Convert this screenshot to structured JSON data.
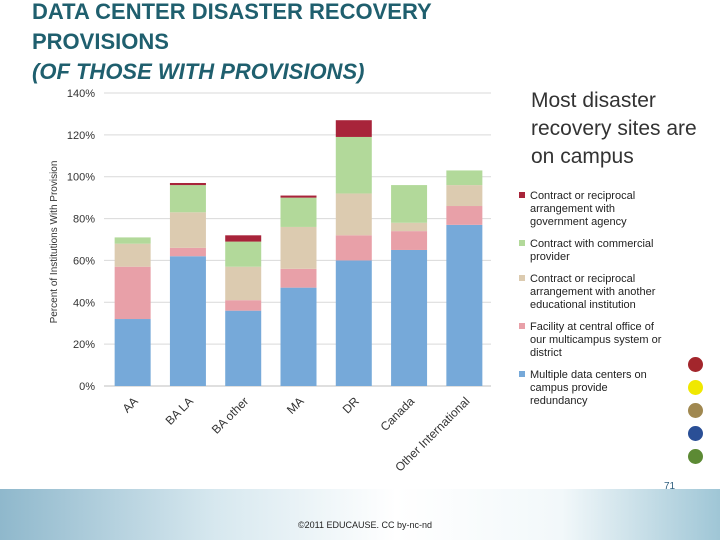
{
  "slide": {
    "title_lines": [
      "DATA CENTER DISASTER RECOVERY",
      "PROVISIONS",
      "(OF THOSE WITH PROVISIONS)"
    ],
    "side_note": "Most disaster recovery sites are on campus",
    "copyright": "©2011 EDUCAUSE. CC by-nc-nd",
    "slide_number": "71",
    "theme_dots": [
      "#a3262c",
      "#f0e800",
      "#a08850",
      "#2a4f96",
      "#5c8a34"
    ]
  },
  "chart_data": {
    "type": "bar",
    "stacked": true,
    "ylabel": "Percent of Institutions With Provision",
    "ylim": [
      0,
      140
    ],
    "yticks": [
      "0%",
      "20%",
      "40%",
      "60%",
      "80%",
      "100%",
      "120%",
      "140%"
    ],
    "categories": [
      "AA",
      "BA LA",
      "BA other",
      "MA",
      "DR",
      "Canada",
      "Other International"
    ],
    "grid": true,
    "legend_position": "right",
    "series": [
      {
        "name": "Multiple data centers on campus provide redundancy",
        "color": "#76a9d9",
        "values": [
          32,
          62,
          36,
          47,
          60,
          65,
          77
        ]
      },
      {
        "name": "Facility at central office of our multicampus system or district",
        "color": "#e8a0a8",
        "values": [
          25,
          4,
          5,
          9,
          12,
          9,
          9
        ]
      },
      {
        "name": "Contract or reciprocal arrangement with another educational institution",
        "color": "#dccbb0",
        "values": [
          11,
          17,
          16,
          20,
          20,
          4,
          10
        ]
      },
      {
        "name": "Contract with commercial provider",
        "color": "#b2d99a",
        "values": [
          3,
          13,
          12,
          14,
          27,
          18,
          7
        ]
      },
      {
        "name": "Contract or reciprocal arrangement with government agency",
        "color": "#a8243a",
        "values": [
          0,
          1,
          3,
          1,
          8,
          0,
          0
        ]
      }
    ],
    "legend_lines": [
      [
        "Contract or reciprocal",
        "arrangement with",
        "government agency"
      ],
      [
        "Contract with commercial",
        "provider"
      ],
      [
        "Contract or reciprocal",
        "arrangement with another",
        "educational institution"
      ],
      [
        "Facility at central office of",
        "our multicampus system or",
        "district"
      ],
      [
        "Multiple data centers on",
        "campus provide",
        "redundancy"
      ]
    ],
    "legend_order": [
      4,
      3,
      2,
      1,
      0
    ]
  }
}
